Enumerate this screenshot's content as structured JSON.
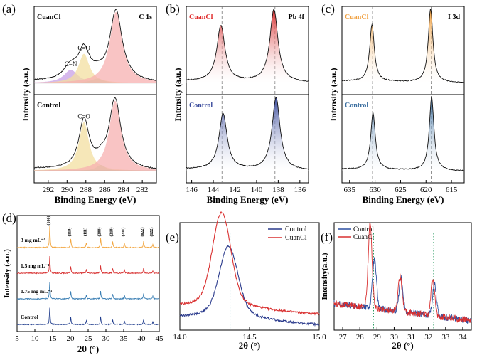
{
  "chart_data": [
    {
      "panel": "(a)",
      "type": "line",
      "title": "C 1s",
      "xlabel": "Binding Energy (eV)",
      "ylabel": "Intensity (a.u.)",
      "xlim": [
        293.5,
        280.5
      ],
      "xticks": [
        "292",
        "290",
        "288",
        "286",
        "284",
        "282"
      ],
      "subplots": [
        {
          "sample": "CuanCl",
          "peaks": [
            {
              "label": "C=N",
              "center": 289.6,
              "height": 0.15,
              "width": 0.9,
              "color": "#c8a0e6"
            },
            {
              "label": "C=O",
              "center": 288.2,
              "height": 0.33,
              "width": 0.7,
              "color": "#f3dfa0"
            },
            {
              "label": "",
              "center": 286.8,
              "height": 0.05,
              "width": 0.8,
              "color": "#b9dc9a"
            },
            {
              "label": "",
              "center": 284.8,
              "height": 0.8,
              "width": 0.8,
              "color": "#f7b0b0"
            }
          ]
        },
        {
          "sample": "Control",
          "peaks": [
            {
              "label": "C=O",
              "center": 288.2,
              "height": 0.5,
              "width": 0.65,
              "color": "#f3dfa0"
            },
            {
              "label": "",
              "center": 286.4,
              "height": 0.06,
              "width": 0.6,
              "color": "#b9dc9a"
            },
            {
              "label": "",
              "center": 284.9,
              "height": 0.72,
              "width": 0.75,
              "color": "#f7b0b0"
            }
          ]
        }
      ]
    },
    {
      "panel": "(b)",
      "type": "line",
      "title": "Pb 4f",
      "xlabel": "Binding Energy (eV)",
      "ylabel": "Intensity (a.u.)",
      "xlim": [
        146.5,
        135.2
      ],
      "xticks": [
        "146",
        "144",
        "142",
        "140",
        "138",
        "136"
      ],
      "reference_lines": [
        143.2,
        138.3
      ],
      "subplots": [
        {
          "sample": "CuanCl",
          "color": "#d93030",
          "peaks": [
            {
              "center": 143.3,
              "height": 0.6,
              "width": 0.45
            },
            {
              "center": 138.4,
              "height": 0.78,
              "width": 0.45
            }
          ]
        },
        {
          "sample": "Control",
          "color": "#3a4b9c",
          "peaks": [
            {
              "center": 143.1,
              "height": 0.6,
              "width": 0.45
            },
            {
              "center": 138.2,
              "height": 0.78,
              "width": 0.45
            }
          ]
        }
      ]
    },
    {
      "panel": "(c)",
      "type": "line",
      "title": "I 3d",
      "xlabel": "Binding Energy (eV)",
      "ylabel": "Intensity (a.u.)",
      "xlim": [
        636.5,
        612.5
      ],
      "xticks": [
        "635",
        "630",
        "625",
        "620",
        "615"
      ],
      "reference_lines": [
        630.5,
        619.0
      ],
      "subplots": [
        {
          "sample": "CuanCl",
          "color": "#f0a040",
          "peaks": [
            {
              "center": 630.6,
              "height": 0.62,
              "width": 0.55
            },
            {
              "center": 619.1,
              "height": 0.8,
              "width": 0.55
            }
          ]
        },
        {
          "sample": "Control",
          "color": "#3c6fa0",
          "peaks": [
            {
              "center": 630.4,
              "height": 0.62,
              "width": 0.55
            },
            {
              "center": 618.9,
              "height": 0.8,
              "width": 0.55
            }
          ]
        }
      ]
    },
    {
      "panel": "(d)",
      "type": "line",
      "xlabel": "2θ (°)",
      "ylabel": "Intensity (a.u.)",
      "xlim": [
        5,
        45
      ],
      "xticks": [
        "5",
        "10",
        "15",
        "20",
        "25",
        "30",
        "35",
        "40",
        "45"
      ],
      "series": [
        {
          "name": "Control",
          "label": "Control",
          "color": "#1f3c8c",
          "offset": 0
        },
        {
          "name": "0.75 mg/mL",
          "label": "0.75 mg mL⁻¹",
          "color": "#3b7fb4",
          "offset": 1
        },
        {
          "name": "1.5 mg/mL",
          "label": "1.5 mg mL⁻¹",
          "color": "#d83333",
          "offset": 2
        },
        {
          "name": "3 mg/mL",
          "label": "3 mg mL⁻¹",
          "color": "#f2a640",
          "offset": 3
        }
      ],
      "peaks": [
        {
          "label": "(100)",
          "x": 14.2,
          "h": 1.0
        },
        {
          "label": "(110)",
          "x": 20.1,
          "h": 0.42
        },
        {
          "label": "(111)",
          "x": 24.5,
          "h": 0.22
        },
        {
          "label": "(200)",
          "x": 28.5,
          "h": 0.45
        },
        {
          "label": "(210)",
          "x": 31.9,
          "h": 0.3
        },
        {
          "label": "(211)",
          "x": 35.2,
          "h": 0.22
        },
        {
          "label": "(022)",
          "x": 40.6,
          "h": 0.3
        },
        {
          "label": "(122)",
          "x": 43.2,
          "h": 0.15
        }
      ]
    },
    {
      "panel": "(e)",
      "type": "line",
      "xlabel": "2θ (°)",
      "ylabel": "",
      "xlim": [
        14.0,
        15.0
      ],
      "xticks": [
        "14.0",
        "14.5",
        "15.0"
      ],
      "reference_line": 14.36,
      "legend": "top-right",
      "series": [
        {
          "name": "Control",
          "color": "#2a3a8c",
          "center": 14.35,
          "height": 0.56,
          "baseline": 0.1
        },
        {
          "name": "CuanCl",
          "color": "#d93030",
          "center": 14.3,
          "height": 0.77,
          "baseline": 0.2
        }
      ]
    },
    {
      "panel": "(f)",
      "type": "line",
      "xlabel": "2θ (°)",
      "ylabel": "Intensity(a.u.)",
      "xlim": [
        26.5,
        34.5
      ],
      "xticks": [
        "27",
        "28",
        "29",
        "30",
        "31",
        "32",
        "33",
        "34"
      ],
      "reference_lines": [
        28.8,
        32.3
      ],
      "legend": "top-left",
      "series": [
        {
          "name": "Control",
          "color": "#2c4fa0",
          "peaks": [
            [
              28.85,
              0.45
            ],
            [
              30.4,
              0.32
            ],
            [
              32.35,
              0.3
            ]
          ]
        },
        {
          "name": "CuanCl",
          "color": "#d93030",
          "peaks": [
            [
              28.6,
              0.78
            ],
            [
              30.35,
              0.33
            ],
            [
              32.25,
              0.33
            ]
          ]
        }
      ]
    }
  ]
}
